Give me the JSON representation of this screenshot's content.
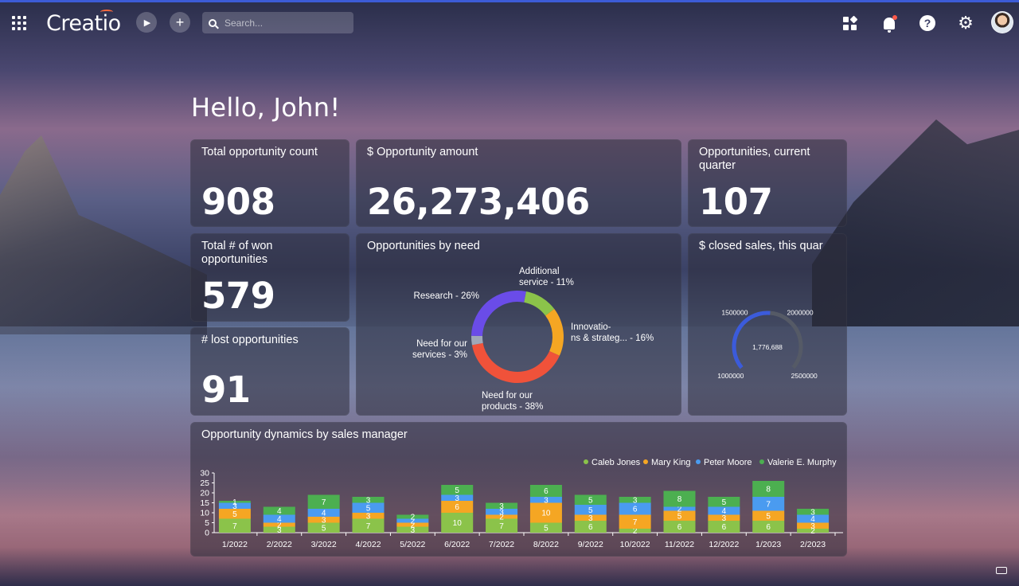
{
  "topbar": {
    "logo": "Creatio",
    "search_placeholder": "Search...",
    "icons": [
      "apps-grid-icon",
      "run-process-icon",
      "add-icon",
      "search-icon",
      "widgets-icon",
      "notifications-icon",
      "help-icon",
      "settings-icon",
      "user-avatar"
    ]
  },
  "greeting": "Hello, John!",
  "kpis": {
    "total_count": {
      "title": "Total opportunity count",
      "value": "908"
    },
    "amount": {
      "title": "$ Opportunity amount",
      "value": "26,273,406"
    },
    "current_quarter": {
      "title": "Opportunities, current quarter",
      "value": "107"
    },
    "won": {
      "title": "Total # of won opportunities",
      "value": "579"
    },
    "lost": {
      "title": "# lost opportunities",
      "value": "91"
    }
  },
  "donut": {
    "title": "Opportunities by need",
    "chart_data": {
      "type": "pie",
      "slices": [
        {
          "label": "Additional service",
          "display": [
            "Additional",
            "service - 11%"
          ],
          "value": 11,
          "color": "#8bc34a"
        },
        {
          "label": "Innovations & strategies",
          "display": [
            "Innovatio-",
            "ns & strateg... - 16%"
          ],
          "value": 16,
          "color": "#f5a623"
        },
        {
          "label": "Need for our products",
          "display": [
            "Need for our",
            "products - 38%"
          ],
          "value": 38,
          "color": "#f0523a"
        },
        {
          "label": "Need for our services",
          "display": [
            "Need for our",
            "services - 3%"
          ],
          "value": 3,
          "color": "#a0a8b8"
        },
        {
          "label": "Research",
          "display": [
            "Research - 26%"
          ],
          "value": 26,
          "color": "#6a4ce8"
        }
      ]
    }
  },
  "gauge": {
    "title": "$ closed sales, this quar",
    "chart_data": {
      "type": "gauge",
      "min": 1000000,
      "max": 2500000,
      "value": 1776688,
      "value_label": "1,776,688",
      "tick_labels": [
        "1000000",
        "1500000",
        "2000000",
        "2500000"
      ],
      "tick_values": [
        1000000,
        1500000,
        2000000,
        2500000
      ],
      "fill_color": "#3b5bdb",
      "track_color": "#555a66"
    }
  },
  "dynamics": {
    "title": "Opportunity dynamics by sales manager",
    "chart_data": {
      "type": "bar",
      "stacked": true,
      "categories": [
        "1/2022",
        "2/2022",
        "3/2022",
        "4/2022",
        "5/2022",
        "6/2022",
        "7/2022",
        "8/2022",
        "9/2022",
        "10/2022",
        "11/2022",
        "12/2022",
        "1/2023",
        "2/2023"
      ],
      "ylim": [
        0,
        30
      ],
      "yticks": [
        "0",
        "5",
        "10",
        "15",
        "20",
        "25",
        "30"
      ],
      "ytick_values": [
        0,
        5,
        10,
        15,
        20,
        25,
        30
      ],
      "series": [
        {
          "name": "Caleb Jones",
          "color": "#8bc34a",
          "values": [
            7,
            3,
            5,
            7,
            3,
            10,
            7,
            5,
            6,
            2,
            6,
            6,
            6,
            2
          ]
        },
        {
          "name": "Mary King",
          "color": "#f5a623",
          "values": [
            5,
            2,
            3,
            3,
            2,
            6,
            2,
            10,
            3,
            7,
            5,
            3,
            5,
            3
          ]
        },
        {
          "name": "Peter Moore",
          "color": "#4a9bf0",
          "values": [
            3,
            4,
            4,
            5,
            2,
            3,
            3,
            3,
            5,
            6,
            2,
            4,
            7,
            4
          ]
        },
        {
          "name": "Valerie E. Murphy",
          "color": "#4caf50",
          "values": [
            1,
            4,
            7,
            3,
            2,
            5,
            3,
            6,
            5,
            3,
            8,
            5,
            8,
            3
          ]
        }
      ]
    }
  }
}
